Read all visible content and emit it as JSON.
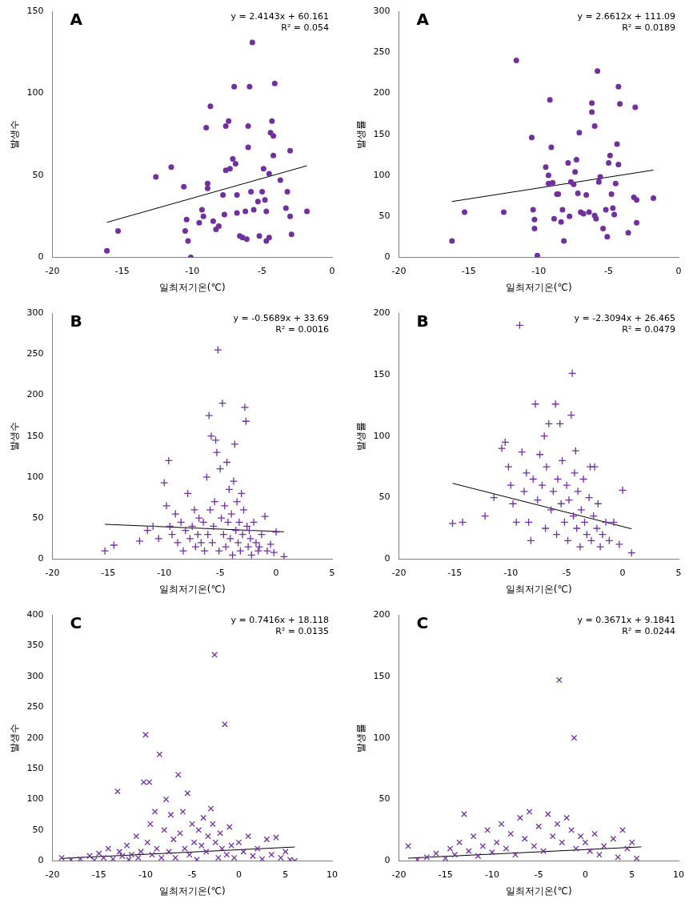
{
  "chart_data": [
    {
      "type": "scatter",
      "title": "A",
      "x_label": "일최저기온(℃)",
      "y_label": "발생수",
      "annotations": [
        "y = 2.4143x + 60.161",
        "R² = 0.054"
      ],
      "xlim": [
        -20,
        0
      ],
      "xticks": [
        -20,
        -15,
        -10,
        -5,
        0
      ],
      "ylim": [
        0,
        150
      ],
      "yticks": [
        0,
        50,
        100,
        150
      ],
      "grid": false,
      "series": [
        {
          "type": "scatter",
          "marker": "circle",
          "color": "#7030a0",
          "x": [
            -16.1,
            -15.3,
            -12.6,
            -11.5,
            -10.5,
            -10.3,
            -10.4,
            -10.6,
            -10.1,
            -9.5,
            -9.3,
            -9.2,
            -9.0,
            -8.9,
            -8.9,
            -8.7,
            -8.5,
            -8.3,
            -8.1,
            -7.8,
            -7.7,
            -7.6,
            -7.6,
            -7.4,
            -7.3,
            -7.1,
            -7.0,
            -6.9,
            -6.8,
            -6.8,
            -6.6,
            -6.4,
            -6.2,
            -6.1,
            -6.0,
            -6.0,
            -5.9,
            -5.8,
            -5.7,
            -5.6,
            -5.3,
            -5.2,
            -5.0,
            -4.9,
            -4.8,
            -4.7,
            -4.7,
            -4.5,
            -4.5,
            -4.4,
            -4.3,
            -4.2,
            -4.2,
            -4.1,
            -3.7,
            -3.3,
            -3.2,
            -3.0,
            -3.0,
            -2.9,
            -1.8
          ],
          "values": [
            4,
            16,
            49,
            55,
            16,
            10,
            23,
            43,
            0,
            21,
            29,
            25,
            79,
            42,
            45,
            92,
            22,
            17,
            19,
            38,
            26,
            53,
            80,
            83,
            54,
            60,
            104,
            57,
            27,
            38,
            13,
            12,
            28,
            11,
            67,
            80,
            104,
            40,
            131,
            29,
            34,
            13,
            40,
            54,
            35,
            28,
            10,
            12,
            51,
            76,
            83,
            74,
            62,
            106,
            47,
            30,
            40,
            65,
            25,
            14,
            28
          ]
        },
        {
          "type": "line",
          "color": "#000000",
          "x": [
            -16.1,
            -1.8
          ],
          "values": [
            21.3,
            55.8
          ]
        }
      ]
    },
    {
      "type": "scatter",
      "title": "A",
      "x_label": "일최저기온(℃)",
      "y_label": "발생률",
      "annotations": [
        "y = 2.6612x + 111.09",
        "R² = 0.0189"
      ],
      "xlim": [
        -20,
        0
      ],
      "xticks": [
        -20,
        -15,
        -10,
        -5,
        0
      ],
      "ylim": [
        0,
        300
      ],
      "yticks": [
        0,
        50,
        100,
        150,
        200,
        250,
        300
      ],
      "grid": false,
      "series": [
        {
          "type": "scatter",
          "marker": "circle",
          "color": "#7030a0",
          "x": [
            -16.2,
            -15.3,
            -12.5,
            -11.6,
            -10.5,
            -10.4,
            -10.3,
            -10.3,
            -10.1,
            -9.5,
            -9.3,
            -9.3,
            -9.2,
            -9.1,
            -9.0,
            -8.9,
            -8.7,
            -8.6,
            -8.4,
            -8.3,
            -8.2,
            -7.9,
            -7.8,
            -7.7,
            -7.5,
            -7.4,
            -7.3,
            -7.2,
            -7.1,
            -7.0,
            -6.8,
            -6.6,
            -6.4,
            -6.2,
            -6.2,
            -6.0,
            -6.0,
            -5.9,
            -5.8,
            -5.7,
            -5.6,
            -5.4,
            -5.2,
            -5.1,
            -5.0,
            -4.9,
            -4.8,
            -4.7,
            -4.6,
            -4.5,
            -4.4,
            -4.3,
            -4.3,
            -4.2,
            -3.6,
            -3.2,
            -3.1,
            -3.0,
            -3.0,
            -1.8
          ],
          "values": [
            20,
            55,
            55,
            240,
            146,
            58,
            35,
            46,
            2,
            110,
            90,
            100,
            192,
            134,
            91,
            47,
            77,
            77,
            43,
            58,
            20,
            115,
            50,
            92,
            89,
            104,
            119,
            78,
            152,
            55,
            53,
            76,
            55,
            188,
            177,
            160,
            51,
            47,
            227,
            92,
            98,
            35,
            58,
            25,
            115,
            124,
            77,
            60,
            52,
            90,
            138,
            208,
            113,
            187,
            30,
            73,
            183,
            70,
            42,
            72
          ]
        },
        {
          "type": "line",
          "color": "#000000",
          "x": [
            -16.2,
            -1.8
          ],
          "values": [
            68.0,
            106.3
          ]
        }
      ]
    },
    {
      "type": "scatter",
      "title": "B",
      "x_label": "일최저기온(℃)",
      "y_label": "발생수",
      "annotations": [
        "y = -0.5689x + 33.69",
        "R² = 0.0016"
      ],
      "xlim": [
        -20,
        5
      ],
      "xticks": [
        -20,
        -15,
        -10,
        -5,
        0,
        5
      ],
      "ylim": [
        0,
        300
      ],
      "yticks": [
        0,
        50,
        100,
        150,
        200,
        250,
        300
      ],
      "grid": false,
      "series": [
        {
          "type": "scatter",
          "marker": "plus",
          "color": "#7030a0",
          "x": [
            -15.3,
            -14.5,
            -12.2,
            -11.5,
            -11,
            -10.5,
            -10,
            -9.8,
            -9.6,
            -9.5,
            -9.3,
            -9,
            -8.8,
            -8.5,
            -8.3,
            -8.1,
            -7.9,
            -7.7,
            -7.5,
            -7.3,
            -7.2,
            -7,
            -6.9,
            -6.7,
            -6.5,
            -6.4,
            -6.2,
            -6.1,
            -6,
            -5.9,
            -5.8,
            -5.7,
            -5.6,
            -5.5,
            -5.4,
            -5.3,
            -5.2,
            -5.1,
            -5,
            -4.9,
            -4.8,
            -4.7,
            -4.6,
            -4.5,
            -4.4,
            -4.3,
            -4.2,
            -4.1,
            -4,
            -3.9,
            -3.8,
            -3.7,
            -3.6,
            -3.5,
            -3.4,
            -3.3,
            -3.2,
            -3.1,
            -3,
            -2.9,
            -2.8,
            -2.7,
            -2.6,
            -2.5,
            -2.4,
            -2.3,
            -2.2,
            -2,
            -1.8,
            -1.6,
            -1.5,
            -1.3,
            -1,
            -0.8,
            -0.5,
            -0.2,
            0,
            0.7
          ],
          "values": [
            10,
            17,
            22,
            35,
            40,
            25,
            93,
            65,
            120,
            40,
            30,
            55,
            20,
            45,
            10,
            35,
            80,
            25,
            40,
            60,
            15,
            30,
            50,
            20,
            45,
            10,
            100,
            30,
            175,
            60,
            150,
            20,
            40,
            70,
            145,
            130,
            255,
            10,
            110,
            50,
            190,
            30,
            65,
            15,
            118,
            45,
            85,
            25,
            55,
            5,
            95,
            140,
            35,
            70,
            20,
            45,
            10,
            80,
            30,
            60,
            185,
            168,
            40,
            15,
            35,
            25,
            5,
            45,
            20,
            10,
            15,
            30,
            52,
            10,
            18,
            8,
            33,
            3
          ]
        },
        {
          "type": "line",
          "color": "#000000",
          "x": [
            -15.3,
            0.7
          ],
          "values": [
            42.4,
            33.3
          ]
        }
      ]
    },
    {
      "type": "scatter",
      "title": "B",
      "x_label": "일최저기온(℃)",
      "y_label": "발생률",
      "annotations": [
        "y = -2.3094x + 26.465",
        "R² = 0.0479"
      ],
      "xlim": [
        -20,
        5
      ],
      "xticks": [
        -20,
        -15,
        -10,
        -5,
        0,
        5
      ],
      "ylim": [
        0,
        200
      ],
      "yticks": [
        0,
        50,
        100,
        150,
        200
      ],
      "grid": false,
      "series": [
        {
          "type": "scatter",
          "marker": "plus",
          "color": "#7030a0",
          "x": [
            -15.2,
            -14.3,
            -12.3,
            -11.5,
            -10.8,
            -10.5,
            -10.2,
            -10,
            -9.8,
            -9.5,
            -9.2,
            -9,
            -8.8,
            -8.6,
            -8.4,
            -8.2,
            -8,
            -7.8,
            -7.6,
            -7.4,
            -7.2,
            -7,
            -6.9,
            -6.8,
            -6.6,
            -6.4,
            -6.2,
            -6,
            -5.9,
            -5.8,
            -5.6,
            -5.5,
            -5.4,
            -5.2,
            -5,
            -4.9,
            -4.8,
            -4.6,
            -4.5,
            -4.4,
            -4.3,
            -4.2,
            -4.1,
            -4,
            -3.8,
            -3.7,
            -3.5,
            -3.4,
            -3.2,
            -3,
            -2.9,
            -2.8,
            -2.6,
            -2.5,
            -2.3,
            -2.2,
            -2,
            -1.8,
            -1.5,
            -1.2,
            -0.8,
            -0.3,
            0,
            0.8
          ],
          "values": [
            29,
            30,
            35,
            50,
            90,
            95,
            75,
            60,
            45,
            30,
            190,
            87,
            55,
            70,
            30,
            15,
            65,
            126,
            48,
            85,
            60,
            100,
            25,
            75,
            110,
            40,
            55,
            126,
            20,
            65,
            110,
            45,
            80,
            30,
            60,
            15,
            48,
            117,
            151,
            35,
            70,
            88,
            25,
            55,
            10,
            40,
            65,
            30,
            20,
            50,
            75,
            15,
            35,
            75,
            25,
            45,
            10,
            20,
            30,
            15,
            30,
            12,
            56,
            5
          ]
        },
        {
          "type": "line",
          "color": "#000000",
          "x": [
            -15.2,
            0.8
          ],
          "values": [
            61.6,
            24.6
          ]
        }
      ]
    },
    {
      "type": "scatter",
      "title": "C",
      "x_label": "일최저기온(℃)",
      "y_label": "발생수",
      "annotations": [
        "y = 0.7416x + 18.118",
        "R² = 0.0135"
      ],
      "xlim": [
        -20,
        10
      ],
      "xticks": [
        -20,
        -15,
        -10,
        -5,
        0,
        5,
        10
      ],
      "ylim": [
        0,
        400
      ],
      "yticks": [
        0,
        50,
        100,
        150,
        200,
        250,
        300,
        350,
        400
      ],
      "grid": false,
      "series": [
        {
          "type": "scatter",
          "marker": "x",
          "color": "#7030a0",
          "x": [
            -19,
            -18,
            -17,
            -16,
            -15.5,
            -15,
            -14.5,
            -14,
            -13.5,
            -13,
            -12.8,
            -12.5,
            -12,
            -11.8,
            -11.5,
            -11,
            -10.8,
            -10.5,
            -10.2,
            -10,
            -9.8,
            -9.6,
            -9.5,
            -9.3,
            -9,
            -8.8,
            -8.5,
            -8.3,
            -8,
            -7.8,
            -7.5,
            -7.3,
            -7,
            -6.8,
            -6.5,
            -6.3,
            -6,
            -5.8,
            -5.5,
            -5.3,
            -5,
            -4.8,
            -4.5,
            -4.3,
            -4,
            -3.8,
            -3.5,
            -3.3,
            -3,
            -2.8,
            -2.6,
            -2.5,
            -2.2,
            -2,
            -1.8,
            -1.5,
            -1.3,
            -1,
            -0.8,
            -0.5,
            0,
            0.5,
            1,
            1.5,
            2,
            2.5,
            3,
            3.5,
            4,
            4.5,
            5,
            5.5,
            6
          ],
          "values": [
            5,
            2,
            3,
            8,
            1,
            12,
            5,
            20,
            3,
            113,
            15,
            8,
            25,
            2,
            10,
            40,
            5,
            15,
            128,
            205,
            30,
            128,
            60,
            10,
            80,
            20,
            173,
            5,
            50,
            100,
            15,
            75,
            35,
            5,
            140,
            45,
            80,
            20,
            110,
            10,
            60,
            30,
            2,
            50,
            25,
            70,
            15,
            40,
            85,
            60,
            335,
            30,
            5,
            45,
            20,
            222,
            10,
            55,
            25,
            5,
            30,
            15,
            40,
            8,
            20,
            3,
            35,
            10,
            38,
            5,
            15,
            2,
            0
          ]
        },
        {
          "type": "line",
          "color": "#000000",
          "x": [
            -19,
            6
          ],
          "values": [
            4.0,
            22.6
          ]
        }
      ]
    },
    {
      "type": "scatter",
      "title": "C",
      "x_label": "일최저기온(℃)",
      "y_label": "발생률",
      "annotations": [
        "y = 0.3671x + 9.1841",
        "R² = 0.0244"
      ],
      "xlim": [
        -20,
        10
      ],
      "xticks": [
        -20,
        -15,
        -10,
        -5,
        0,
        5,
        10
      ],
      "ylim": [
        0,
        200
      ],
      "yticks": [
        0,
        50,
        100,
        150,
        200
      ],
      "grid": false,
      "series": [
        {
          "type": "scatter",
          "marker": "x",
          "color": "#7030a0",
          "x": [
            -19,
            -18,
            -17,
            -16,
            -15,
            -14.5,
            -14,
            -13.5,
            -13,
            -12.5,
            -12,
            -11.5,
            -11,
            -10.5,
            -10,
            -9.5,
            -9,
            -8.5,
            -8,
            -7.5,
            -7,
            -6.5,
            -6,
            -5.5,
            -5,
            -4.5,
            -4,
            -3.5,
            -3,
            -2.8,
            -2.5,
            -2,
            -1.5,
            -1.2,
            -1,
            -0.5,
            0,
            0.5,
            1,
            1.5,
            2,
            3,
            3.5,
            4,
            4.5,
            5,
            5.5
          ],
          "values": [
            12,
            1,
            3,
            6,
            2,
            10,
            5,
            15,
            38,
            8,
            20,
            4,
            12,
            25,
            7,
            15,
            30,
            10,
            22,
            5,
            35,
            18,
            40,
            12,
            28,
            8,
            38,
            20,
            30,
            147,
            15,
            35,
            25,
            100,
            10,
            20,
            15,
            8,
            22,
            5,
            12,
            18,
            3,
            25,
            10,
            15,
            2
          ]
        },
        {
          "type": "line",
          "color": "#000000",
          "x": [
            -19,
            6
          ],
          "values": [
            2.2,
            11.4
          ]
        }
      ]
    }
  ]
}
